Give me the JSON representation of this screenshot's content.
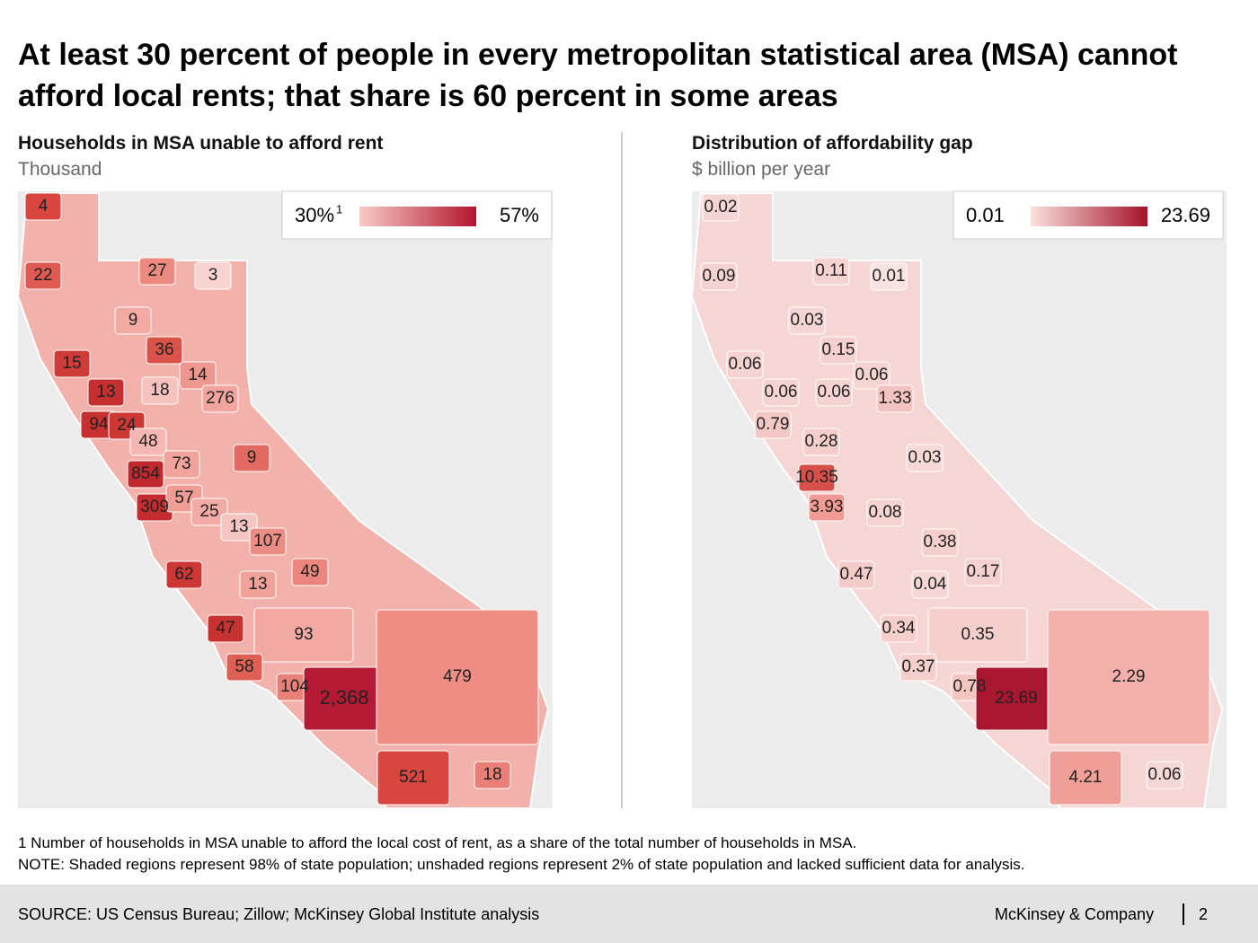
{
  "title": "At least 30 percent of people in every metropolitan statistical area (MSA) cannot afford local rents; that share is 60 percent in some areas",
  "left": {
    "title": "Households in MSA unable to afford rent",
    "subtitle": "Thousand",
    "legend": {
      "min": "30%",
      "min_note": "1",
      "max": "57%",
      "min_color": "#f8cbc6",
      "max_color": "#b3142e"
    },
    "regions": [
      {
        "label": "4",
        "color": "#d9463f"
      },
      {
        "label": "22",
        "color": "#de5a52"
      },
      {
        "label": "27",
        "color": "#ec8a82"
      },
      {
        "label": "3",
        "color": "#f7d4d0"
      },
      {
        "label": "9",
        "color": "#f3aaa3"
      },
      {
        "label": "36",
        "color": "#d9534a"
      },
      {
        "label": "15",
        "color": "#cf3b36"
      },
      {
        "label": "13",
        "color": "#c62f30"
      },
      {
        "label": "18",
        "color": "#f5c2bd"
      },
      {
        "label": "14",
        "color": "#ee978f"
      },
      {
        "label": "276",
        "color": "#f2a59e"
      },
      {
        "label": "94",
        "color": "#c8302f"
      },
      {
        "label": "24",
        "color": "#cd3835"
      },
      {
        "label": "48",
        "color": "#f4b7b1"
      },
      {
        "label": "73",
        "color": "#f1a39c"
      },
      {
        "label": "9",
        "color": "#e36a62"
      },
      {
        "label": "854",
        "color": "#c0282d"
      },
      {
        "label": "309",
        "color": "#c42c2f"
      },
      {
        "label": "57",
        "color": "#ef9c95"
      },
      {
        "label": "25",
        "color": "#f2aba4"
      },
      {
        "label": "13",
        "color": "#f5c6c1"
      },
      {
        "label": "107",
        "color": "#ec8d85"
      },
      {
        "label": "62",
        "color": "#cc3634"
      },
      {
        "label": "13",
        "color": "#f0a199"
      },
      {
        "label": "49",
        "color": "#eb857d"
      },
      {
        "label": "47",
        "color": "#c83231"
      },
      {
        "label": "93",
        "color": "#f2a9a2"
      },
      {
        "label": "58",
        "color": "#df5f55"
      },
      {
        "label": "104",
        "color": "#ea8178"
      },
      {
        "label": "2,368",
        "color": "#b51a34"
      },
      {
        "label": "479",
        "color": "#ef8d85"
      },
      {
        "label": "521",
        "color": "#d9463f"
      },
      {
        "label": "18",
        "color": "#ea7f77"
      }
    ]
  },
  "right": {
    "title": "Distribution of affordability gap",
    "subtitle": "$ billion per year",
    "legend": {
      "min": "0.01",
      "max": "23.69",
      "min_color": "#fbe0de",
      "max_color": "#a5122a"
    },
    "regions": [
      {
        "label": "0.02",
        "color": "#f5d5d3"
      },
      {
        "label": "0.09",
        "color": "#f5d3d1"
      },
      {
        "label": "0.11",
        "color": "#f5d3d1"
      },
      {
        "label": "0.01",
        "color": "#f8e3e1"
      },
      {
        "label": "0.03",
        "color": "#f5d5d3"
      },
      {
        "label": "0.15",
        "color": "#f4d0ce"
      },
      {
        "label": "0.06",
        "color": "#f5d3d1"
      },
      {
        "label": "0.06",
        "color": "#f5d3d1"
      },
      {
        "label": "0.06",
        "color": "#f5d3d1"
      },
      {
        "label": "0.06",
        "color": "#f5d3d1"
      },
      {
        "label": "1.33",
        "color": "#f3c3bf"
      },
      {
        "label": "0.79",
        "color": "#f3c7c3"
      },
      {
        "label": "0.28",
        "color": "#f4cecb"
      },
      {
        "label": "0.03",
        "color": "#f6d9d7"
      },
      {
        "label": "10.35",
        "color": "#d65049"
      },
      {
        "label": "3.93",
        "color": "#f19a93"
      },
      {
        "label": "0.08",
        "color": "#f5d3d1"
      },
      {
        "label": "0.38",
        "color": "#f4cfcc"
      },
      {
        "label": "0.47",
        "color": "#f4cbc8"
      },
      {
        "label": "0.04",
        "color": "#f6d7d5"
      },
      {
        "label": "0.17",
        "color": "#f4d0ce"
      },
      {
        "label": "0.34",
        "color": "#f4cfcc"
      },
      {
        "label": "0.35",
        "color": "#f4cfcc"
      },
      {
        "label": "0.37",
        "color": "#f4cfcc"
      },
      {
        "label": "0.78",
        "color": "#f3c6c2"
      },
      {
        "label": "23.69",
        "color": "#a8172f"
      },
      {
        "label": "2.29",
        "color": "#f3b0aa"
      },
      {
        "label": "4.21",
        "color": "#ef9f98"
      },
      {
        "label": "0.06",
        "color": "#f5d8d6"
      }
    ]
  },
  "footnotes": [
    "1 Number of households in MSA unable to afford the local cost of rent, as a share of the total number of households in MSA.",
    "NOTE: Shaded regions represent 98% of state population; unshaded regions represent 2% of state population and lacked sufficient data for analysis."
  ],
  "source": "SOURCE: US Census Bureau; Zillow; McKinsey Global Institute analysis",
  "brand": "McKinsey & Company",
  "page": "2"
}
